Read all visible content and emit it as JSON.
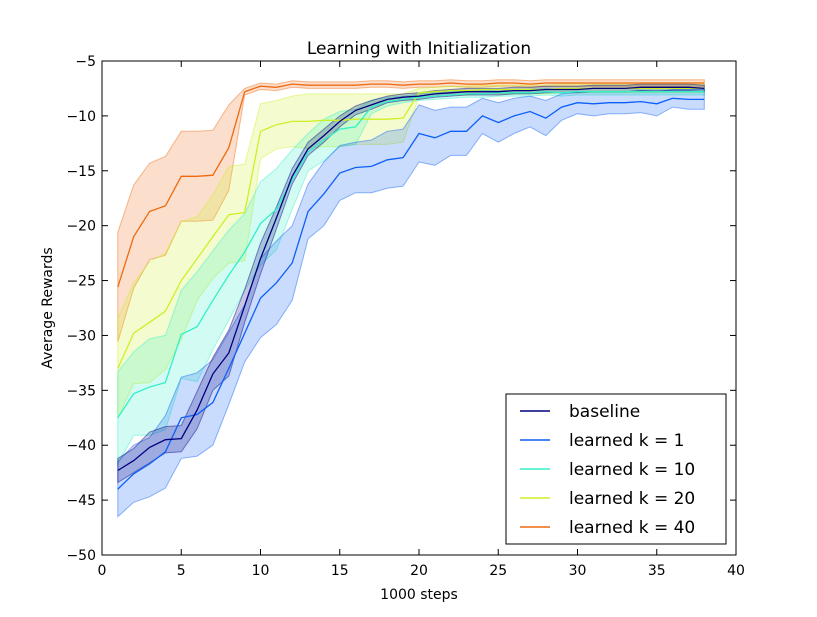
{
  "chart_data": {
    "type": "line",
    "title": "Learning with Initialization",
    "xlabel": "1000 steps",
    "ylabel": "Average Rewards",
    "xlim": [
      0,
      40
    ],
    "ylim": [
      -50,
      -5
    ],
    "xticks": [
      0,
      5,
      10,
      15,
      20,
      25,
      30,
      35,
      40
    ],
    "xtick_labels": [
      "0",
      "5",
      "10",
      "15",
      "20",
      "25",
      "30",
      "35",
      "40"
    ],
    "yticks": [
      -50,
      -45,
      -40,
      -35,
      -30,
      -25,
      -20,
      -15,
      -10,
      -5
    ],
    "ytick_labels": [
      "−50",
      "−45",
      "−40",
      "−35",
      "−30",
      "−25",
      "−20",
      "−15",
      "−10",
      "−5"
    ],
    "grid": false,
    "legend_position": "bottom-right",
    "x": [
      1,
      2,
      3,
      4,
      5,
      6,
      7,
      8,
      9,
      10,
      11,
      12,
      13,
      14,
      15,
      16,
      17,
      18,
      19,
      20,
      21,
      22,
      23,
      24,
      25,
      26,
      27,
      28,
      29,
      30,
      31,
      32,
      33,
      34,
      35,
      36,
      37,
      38
    ],
    "series": [
      {
        "name": "learned k = 40",
        "color": "#ee6a10",
        "values": [
          -25.6,
          -21.0,
          -18.7,
          -18.2,
          -15.5,
          -15.5,
          -15.4,
          -12.9,
          -7.8,
          -7.3,
          -7.4,
          -7.1,
          -7.2,
          -7.2,
          -7.2,
          -7.2,
          -7.1,
          -7.1,
          -7.2,
          -7.1,
          -7.1,
          -7.0,
          -7.1,
          -7.1,
          -7.0,
          -7.0,
          -7.1,
          -7.0,
          -7.0,
          -7.0,
          -7.0,
          -7.0,
          -7.0,
          -7.0,
          -7.0,
          -7.0,
          -7.0,
          -7.0
        ],
        "upper": [
          -20.6,
          -16.3,
          -14.3,
          -13.7,
          -11.4,
          -11.4,
          -11.3,
          -9.0,
          -7.5,
          -7.0,
          -7.1,
          -6.8,
          -6.9,
          -6.9,
          -6.9,
          -6.9,
          -6.8,
          -6.8,
          -6.9,
          -6.8,
          -6.8,
          -6.7,
          -6.8,
          -6.8,
          -6.7,
          -6.7,
          -6.8,
          -6.7,
          -6.7,
          -6.7,
          -6.7,
          -6.7,
          -6.7,
          -6.7,
          -6.7,
          -6.7,
          -6.7,
          -6.7
        ],
        "lower": [
          -30.6,
          -25.7,
          -23.1,
          -22.7,
          -19.6,
          -19.6,
          -19.5,
          -16.8,
          -8.1,
          -7.6,
          -7.7,
          -7.4,
          -7.5,
          -7.5,
          -7.5,
          -7.5,
          -7.4,
          -7.4,
          -7.5,
          -7.4,
          -7.4,
          -7.3,
          -7.4,
          -7.4,
          -7.3,
          -7.3,
          -7.4,
          -7.3,
          -7.3,
          -7.3,
          -7.3,
          -7.3,
          -7.3,
          -7.3,
          -7.3,
          -7.3,
          -7.3,
          -7.3
        ]
      },
      {
        "name": "learned k = 20",
        "color": "#ccf026",
        "values": [
          -33.0,
          -29.8,
          -28.8,
          -27.8,
          -25.0,
          -23.0,
          -21.0,
          -19.0,
          -18.8,
          -11.4,
          -10.8,
          -10.5,
          -10.5,
          -10.4,
          -10.4,
          -10.3,
          -10.3,
          -10.3,
          -10.2,
          -7.9,
          -7.8,
          -7.7,
          -7.7,
          -7.6,
          -7.6,
          -7.6,
          -7.6,
          -7.6,
          -7.5,
          -7.5,
          -7.5,
          -7.5,
          -7.5,
          -7.5,
          -7.5,
          -7.5,
          -7.5,
          -7.5
        ],
        "upper": [
          -28.5,
          -25.2,
          -23.3,
          -22.5,
          -19.6,
          -19.2,
          -17.2,
          -14.6,
          -14.4,
          -8.9,
          -8.6,
          -8.2,
          -8.0,
          -8.0,
          -8.0,
          -8.0,
          -8.0,
          -8.0,
          -8.0,
          -7.5,
          -7.4,
          -7.3,
          -7.3,
          -7.2,
          -7.2,
          -7.2,
          -7.2,
          -7.2,
          -7.1,
          -7.1,
          -7.1,
          -7.1,
          -7.1,
          -7.1,
          -7.1,
          -7.1,
          -7.1,
          -7.1
        ],
        "lower": [
          -37.5,
          -34.4,
          -34.3,
          -33.1,
          -30.4,
          -26.8,
          -24.8,
          -23.4,
          -23.2,
          -13.9,
          -13.0,
          -12.8,
          -13.0,
          -12.8,
          -12.8,
          -12.6,
          -12.6,
          -12.6,
          -12.4,
          -8.3,
          -8.2,
          -8.1,
          -8.1,
          -8.0,
          -8.0,
          -8.0,
          -8.0,
          -8.0,
          -7.9,
          -7.9,
          -7.9,
          -7.9,
          -7.9,
          -7.9,
          -7.9,
          -7.9,
          -7.9,
          -7.9
        ]
      },
      {
        "name": "learned k = 10",
        "color": "#33f0c8",
        "values": [
          -37.5,
          -35.3,
          -34.7,
          -34.3,
          -29.9,
          -29.2,
          -26.8,
          -24.5,
          -22.4,
          -19.8,
          -18.5,
          -15.8,
          -13.3,
          -12.2,
          -11.2,
          -11.0,
          -9.2,
          -8.7,
          -8.5,
          -8.3,
          -8.2,
          -8.1,
          -8.0,
          -8.0,
          -7.9,
          -7.9,
          -7.9,
          -7.8,
          -7.9,
          -7.8,
          -7.8,
          -7.8,
          -7.8,
          -7.8,
          -7.8,
          -7.8,
          -7.8,
          -7.8
        ],
        "upper": [
          -33.3,
          -31.5,
          -30.3,
          -30.0,
          -25.9,
          -24.2,
          -22.3,
          -20.4,
          -18.9,
          -16.0,
          -14.8,
          -13.1,
          -11.6,
          -10.3,
          -9.6,
          -9.4,
          -8.6,
          -8.3,
          -8.2,
          -8.0,
          -7.9,
          -7.8,
          -7.7,
          -7.7,
          -7.6,
          -7.6,
          -7.6,
          -7.5,
          -7.6,
          -7.5,
          -7.5,
          -7.5,
          -7.5,
          -7.5,
          -7.5,
          -7.5,
          -7.5,
          -7.5
        ],
        "lower": [
          -41.7,
          -39.1,
          -39.1,
          -38.6,
          -33.9,
          -34.2,
          -31.3,
          -28.6,
          -25.9,
          -23.6,
          -22.2,
          -18.5,
          -15.0,
          -14.1,
          -12.8,
          -12.6,
          -9.8,
          -9.1,
          -8.8,
          -8.6,
          -8.5,
          -8.4,
          -8.3,
          -8.3,
          -8.2,
          -8.2,
          -8.2,
          -8.1,
          -8.2,
          -8.1,
          -8.1,
          -8.1,
          -8.1,
          -8.1,
          -8.1,
          -8.1,
          -8.1,
          -8.1
        ]
      },
      {
        "name": "learned k = 1",
        "color": "#0d5ff7",
        "values": [
          -44.0,
          -42.6,
          -41.7,
          -40.6,
          -37.5,
          -37.2,
          -36.1,
          -33.0,
          -29.8,
          -26.6,
          -25.2,
          -23.4,
          -18.7,
          -17.1,
          -15.2,
          -14.7,
          -14.6,
          -14.0,
          -13.8,
          -11.6,
          -12.0,
          -11.4,
          -11.4,
          -10.0,
          -10.6,
          -10.0,
          -9.6,
          -10.2,
          -9.2,
          -8.8,
          -8.9,
          -8.8,
          -8.8,
          -8.7,
          -8.9,
          -8.4,
          -8.5,
          -8.5
        ],
        "upper": [
          -41.5,
          -40.0,
          -39.3,
          -37.3,
          -33.8,
          -33.4,
          -32.2,
          -29.7,
          -27.2,
          -23.0,
          -21.4,
          -20.0,
          -16.2,
          -14.2,
          -12.7,
          -12.4,
          -12.2,
          -11.4,
          -11.2,
          -9.0,
          -9.5,
          -9.2,
          -9.2,
          -8.4,
          -8.8,
          -8.4,
          -8.2,
          -8.6,
          -8.0,
          -7.8,
          -7.8,
          -7.8,
          -7.8,
          -7.7,
          -7.8,
          -7.6,
          -7.6,
          -7.6
        ],
        "lower": [
          -46.5,
          -45.2,
          -44.7,
          -43.9,
          -41.2,
          -41.0,
          -40.0,
          -36.3,
          -32.4,
          -30.2,
          -29.0,
          -26.8,
          -21.2,
          -20.0,
          -17.7,
          -17.0,
          -17.0,
          -16.6,
          -16.4,
          -14.2,
          -14.5,
          -13.6,
          -13.6,
          -11.6,
          -12.4,
          -11.6,
          -11.0,
          -11.8,
          -10.4,
          -9.8,
          -10.0,
          -9.8,
          -9.8,
          -9.7,
          -10.0,
          -9.2,
          -9.4,
          -9.4
        ]
      },
      {
        "name": "baseline",
        "color": "#00007f",
        "values": [
          -42.3,
          -41.4,
          -40.2,
          -39.5,
          -39.4,
          -36.8,
          -33.5,
          -31.6,
          -27.3,
          -23.0,
          -19.3,
          -15.5,
          -13.0,
          -11.8,
          -10.5,
          -9.5,
          -9.0,
          -8.5,
          -8.3,
          -8.2,
          -8.0,
          -7.9,
          -7.8,
          -7.8,
          -7.8,
          -7.7,
          -7.7,
          -7.6,
          -7.6,
          -7.6,
          -7.5,
          -7.5,
          -7.5,
          -7.4,
          -7.4,
          -7.4,
          -7.4,
          -7.5
        ],
        "upper": [
          -41.2,
          -40.3,
          -38.8,
          -38.3,
          -38.2,
          -35.1,
          -32.0,
          -29.5,
          -25.8,
          -21.6,
          -18.3,
          -14.8,
          -12.4,
          -11.2,
          -10.0,
          -9.1,
          -8.6,
          -8.2,
          -8.0,
          -7.9,
          -7.7,
          -7.6,
          -7.5,
          -7.5,
          -7.5,
          -7.4,
          -7.4,
          -7.3,
          -7.3,
          -7.3,
          -7.2,
          -7.2,
          -7.2,
          -7.1,
          -7.1,
          -7.1,
          -7.1,
          -7.2
        ],
        "lower": [
          -43.4,
          -42.5,
          -41.6,
          -40.7,
          -40.6,
          -38.5,
          -35.0,
          -33.7,
          -28.8,
          -24.4,
          -20.3,
          -16.2,
          -13.6,
          -12.4,
          -11.0,
          -9.9,
          -9.4,
          -8.8,
          -8.6,
          -8.5,
          -8.3,
          -8.2,
          -8.1,
          -8.1,
          -8.1,
          -8.0,
          -8.0,
          -7.9,
          -7.9,
          -7.9,
          -7.8,
          -7.8,
          -7.8,
          -7.7,
          -7.7,
          -7.7,
          -7.7,
          -7.8
        ]
      }
    ],
    "legend": [
      {
        "name": "baseline",
        "color": "#00007f"
      },
      {
        "name": "learned k = 1",
        "color": "#0d5ff7"
      },
      {
        "name": "learned k = 10",
        "color": "#33f0c8"
      },
      {
        "name": "learned k = 20",
        "color": "#ccf026"
      },
      {
        "name": "learned k = 40",
        "color": "#ee6a10"
      }
    ]
  }
}
